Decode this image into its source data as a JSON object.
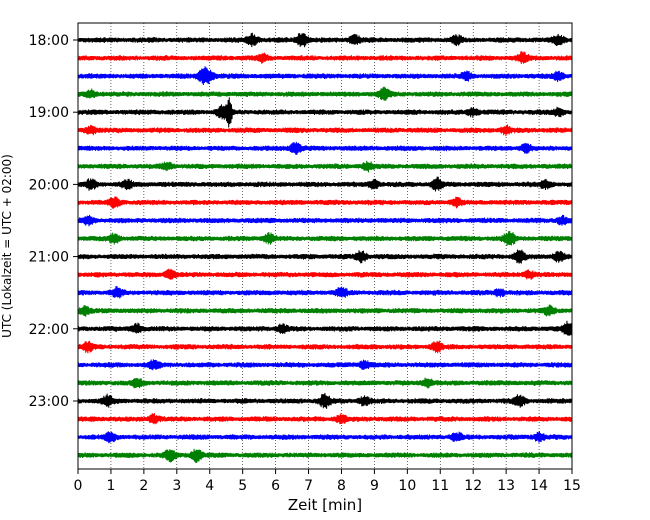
{
  "chart_data": {
    "type": "line",
    "title": "",
    "xlabel": "Zeit  [min]",
    "ylabel": "UTC (Lokalzeit = UTC + 02:00)",
    "xlim": [
      0,
      15
    ],
    "x_ticks": [
      "0",
      "1",
      "2",
      "3",
      "4",
      "5",
      "6",
      "7",
      "8",
      "9",
      "10",
      "11",
      "12",
      "13",
      "14",
      "15"
    ],
    "y_tick_labels": [
      "18:00",
      "19:00",
      "20:00",
      "21:00",
      "22:00",
      "23:00"
    ],
    "grid": "vertical dotted lines at each minute",
    "legend": "none",
    "color_cycle": [
      "#000000",
      "#ff0000",
      "#0000ff",
      "#008000"
    ],
    "series": [
      {
        "start": "18:00",
        "events": [
          [
            5.3,
            0.8
          ],
          [
            6.8,
            1.0
          ],
          [
            8.4,
            0.6
          ],
          [
            11.5,
            0.5
          ],
          [
            14.6,
            0.6
          ]
        ]
      },
      {
        "start": "18:15",
        "events": [
          [
            5.6,
            0.5
          ],
          [
            13.5,
            0.6
          ]
        ]
      },
      {
        "start": "18:30",
        "events": [
          [
            3.8,
            0.9
          ],
          [
            4.0,
            0.7
          ],
          [
            11.8,
            0.5
          ],
          [
            14.6,
            0.5
          ]
        ]
      },
      {
        "start": "18:45",
        "events": [
          [
            0.4,
            0.5
          ],
          [
            9.3,
            0.8
          ]
        ]
      },
      {
        "start": "19:00",
        "events": [
          [
            4.4,
            1.0
          ],
          [
            4.6,
            1.9
          ],
          [
            12.0,
            0.5
          ],
          [
            14.6,
            0.5
          ]
        ]
      },
      {
        "start": "19:15",
        "events": [
          [
            0.4,
            0.5
          ],
          [
            13.0,
            0.5
          ]
        ]
      },
      {
        "start": "19:30",
        "events": [
          [
            6.6,
            0.7
          ],
          [
            13.6,
            0.5
          ]
        ]
      },
      {
        "start": "19:45",
        "events": [
          [
            2.7,
            0.5
          ],
          [
            8.8,
            0.5
          ]
        ]
      },
      {
        "start": "20:00",
        "events": [
          [
            0.4,
            0.6
          ],
          [
            1.5,
            0.5
          ],
          [
            9.0,
            0.5
          ],
          [
            10.9,
            0.8
          ],
          [
            14.2,
            0.5
          ]
        ]
      },
      {
        "start": "20:15",
        "events": [
          [
            1.1,
            0.6
          ],
          [
            11.5,
            0.5
          ]
        ]
      },
      {
        "start": "20:30",
        "events": [
          [
            0.3,
            0.5
          ],
          [
            14.7,
            0.5
          ]
        ]
      },
      {
        "start": "20:45",
        "events": [
          [
            1.1,
            0.6
          ],
          [
            5.8,
            0.6
          ],
          [
            13.1,
            1.0
          ]
        ]
      },
      {
        "start": "21:00",
        "events": [
          [
            8.6,
            0.7
          ],
          [
            13.4,
            0.8
          ],
          [
            14.6,
            0.6
          ]
        ]
      },
      {
        "start": "21:15",
        "events": [
          [
            2.8,
            0.6
          ],
          [
            13.7,
            0.5
          ]
        ]
      },
      {
        "start": "21:30",
        "events": [
          [
            1.2,
            0.6
          ],
          [
            8.0,
            0.6
          ],
          [
            12.8,
            0.5
          ]
        ]
      },
      {
        "start": "21:45",
        "events": [
          [
            0.2,
            0.5
          ],
          [
            14.3,
            0.5
          ]
        ]
      },
      {
        "start": "22:00",
        "events": [
          [
            1.8,
            0.6
          ],
          [
            6.2,
            0.5
          ],
          [
            14.9,
            0.9
          ]
        ]
      },
      {
        "start": "22:15",
        "events": [
          [
            0.3,
            0.6
          ],
          [
            10.9,
            0.7
          ]
        ]
      },
      {
        "start": "22:30",
        "events": [
          [
            2.3,
            0.5
          ],
          [
            8.7,
            0.5
          ]
        ]
      },
      {
        "start": "22:45",
        "events": [
          [
            1.8,
            0.5
          ],
          [
            10.6,
            0.6
          ]
        ]
      },
      {
        "start": "23:00",
        "events": [
          [
            0.9,
            0.7
          ],
          [
            7.5,
            0.9
          ],
          [
            8.7,
            0.6
          ],
          [
            13.4,
            0.7
          ]
        ]
      },
      {
        "start": "23:15",
        "events": [
          [
            2.3,
            0.6
          ],
          [
            8.0,
            0.5
          ]
        ]
      },
      {
        "start": "23:30",
        "events": [
          [
            1.0,
            0.6
          ],
          [
            11.5,
            0.5
          ],
          [
            14.0,
            0.5
          ]
        ]
      },
      {
        "start": "23:45",
        "events": [
          [
            2.8,
            0.7
          ],
          [
            3.6,
            0.8
          ]
        ]
      }
    ]
  }
}
